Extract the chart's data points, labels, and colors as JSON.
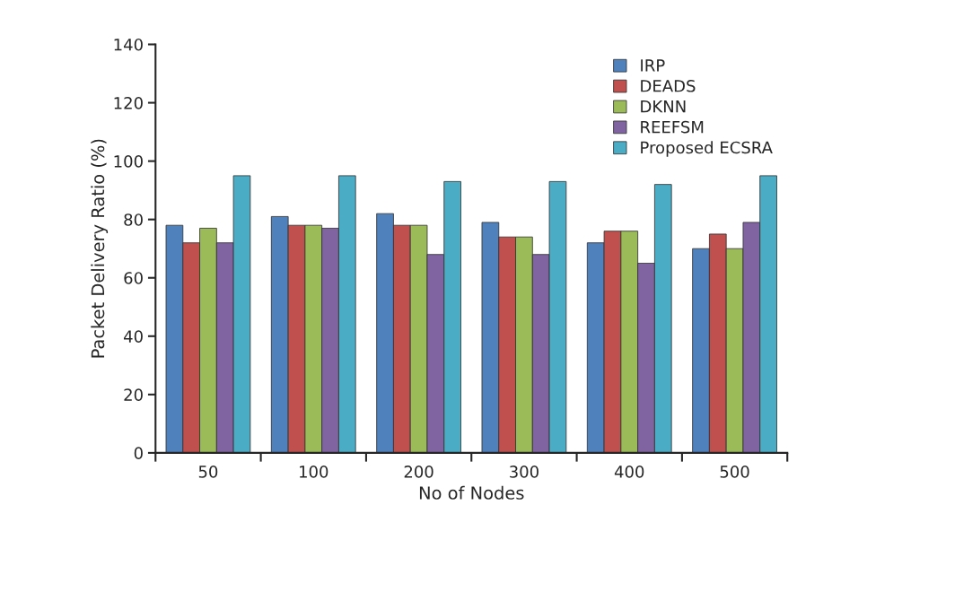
{
  "chart_data": {
    "type": "bar",
    "xlabel": "No of Nodes",
    "ylabel": "Packet Delivery Ratio (%)",
    "categories": [
      "50",
      "100",
      "200",
      "300",
      "400",
      "500"
    ],
    "series": [
      {
        "name": "IRP",
        "color": "#4f81bd",
        "values": [
          78,
          81,
          82,
          79,
          72,
          70
        ]
      },
      {
        "name": "DEADS",
        "color": "#c0504d",
        "values": [
          72,
          78,
          78,
          74,
          76,
          75
        ]
      },
      {
        "name": "DKNN",
        "color": "#9bbb59",
        "values": [
          77,
          78,
          78,
          74,
          76,
          70
        ]
      },
      {
        "name": "REEFSM",
        "color": "#8064a2",
        "values": [
          72,
          77,
          68,
          68,
          65,
          79
        ]
      },
      {
        "name": "Proposed ECSRA",
        "color": "#4bacc6",
        "values": [
          95,
          95,
          93,
          93,
          92,
          95
        ]
      }
    ],
    "ylim": [
      0,
      140
    ],
    "yticks": [
      0,
      20,
      40,
      60,
      80,
      100,
      120,
      140
    ],
    "grid": false,
    "legend": "top right"
  }
}
